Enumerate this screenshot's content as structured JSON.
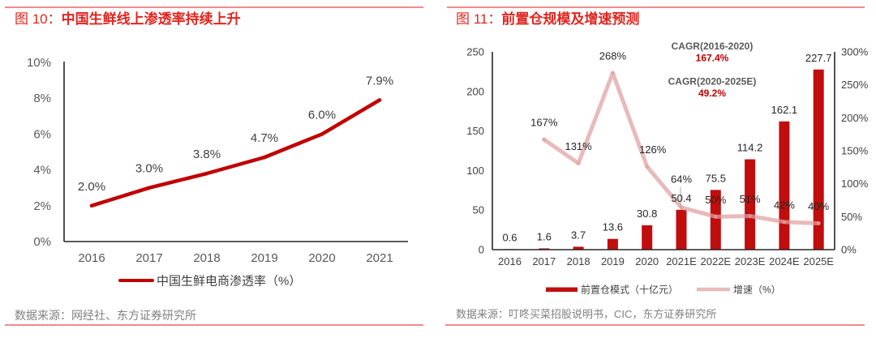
{
  "panels": [
    {
      "figure_no": "图 10：",
      "title": "中国生鲜线上渗透率持续上升",
      "source": "数据来源：网经社、东方证券研究所"
    },
    {
      "figure_no": "图 11：",
      "title": "前置仓规模及增速预测",
      "source": "数据来源：叮咚买菜招股说明书，CIC，东方证券研究所"
    }
  ],
  "colors": {
    "title_red": "#e0251f",
    "rule": "#f08a8a",
    "penetration_line": "#c00000",
    "bar": "#c00d0d",
    "growth_line": "#dfa0a0",
    "cagr_value": "#c00000",
    "leader_line": "#a6a6a6"
  },
  "chart_data": [
    {
      "type": "line",
      "title": "中国生鲜线上渗透率持续上升",
      "xlabel": "",
      "ylabel": "",
      "categories": [
        "2016",
        "2017",
        "2018",
        "2019",
        "2020",
        "2021"
      ],
      "series": [
        {
          "name": "中国生鲜电商渗透率（%）",
          "values": [
            2.0,
            3.0,
            3.8,
            4.7,
            6.0,
            7.9
          ],
          "labels": [
            "2.0%",
            "3.0%",
            "3.8%",
            "4.7%",
            "6.0%",
            "7.9%"
          ]
        }
      ],
      "ylim": [
        0,
        10
      ],
      "yticks": [
        0,
        2,
        4,
        6,
        8,
        10
      ],
      "ytick_labels": [
        "0%",
        "2%",
        "4%",
        "6%",
        "8%",
        "10%"
      ],
      "grid": false,
      "legend": "bottom-center"
    },
    {
      "type": "bar",
      "title": "前置仓规模及增速预测",
      "xlabel": "",
      "categories": [
        "2016",
        "2017",
        "2018",
        "2019",
        "2020",
        "2021E",
        "2022E",
        "2023E",
        "2024E",
        "2025E"
      ],
      "series": [
        {
          "name": "前置仓模式（十亿元）",
          "type": "bar",
          "axis": "left",
          "values": [
            0.6,
            1.6,
            3.7,
            13.6,
            30.8,
            50.4,
            75.5,
            114.2,
            162.1,
            227.7
          ],
          "labels": [
            "0.6",
            "1.6",
            "3.7",
            "13.6",
            "30.8",
            "50.4",
            "75.5",
            "114.2",
            "162.1",
            "227.7"
          ]
        },
        {
          "name": "增速（%）",
          "type": "line",
          "axis": "right",
          "values": [
            null,
            167,
            131,
            268,
            126,
            64,
            50,
            51,
            42,
            40
          ],
          "labels": [
            null,
            "167%",
            "131%",
            "268%",
            "126%",
            "64%",
            "50%",
            "51%",
            "42%",
            "40%"
          ]
        }
      ],
      "ylim_left": [
        0,
        250
      ],
      "yticks_left": [
        0,
        50,
        100,
        150,
        200,
        250
      ],
      "ytick_labels_left": [
        "0",
        "50",
        "100",
        "150",
        "200",
        "250"
      ],
      "ylim_right": [
        0,
        300
      ],
      "yticks_right": [
        0,
        50,
        100,
        150,
        200,
        250,
        300
      ],
      "ytick_labels_right": [
        "0%",
        "50%",
        "100%",
        "150%",
        "200%",
        "250%",
        "300%"
      ],
      "annotations": [
        {
          "label": "CAGR(2016-2020)",
          "value": "167.4%"
        },
        {
          "label": "CAGR(2020-2025E)",
          "value": "49.2%"
        }
      ],
      "grid": false,
      "legend": "bottom-center"
    }
  ]
}
